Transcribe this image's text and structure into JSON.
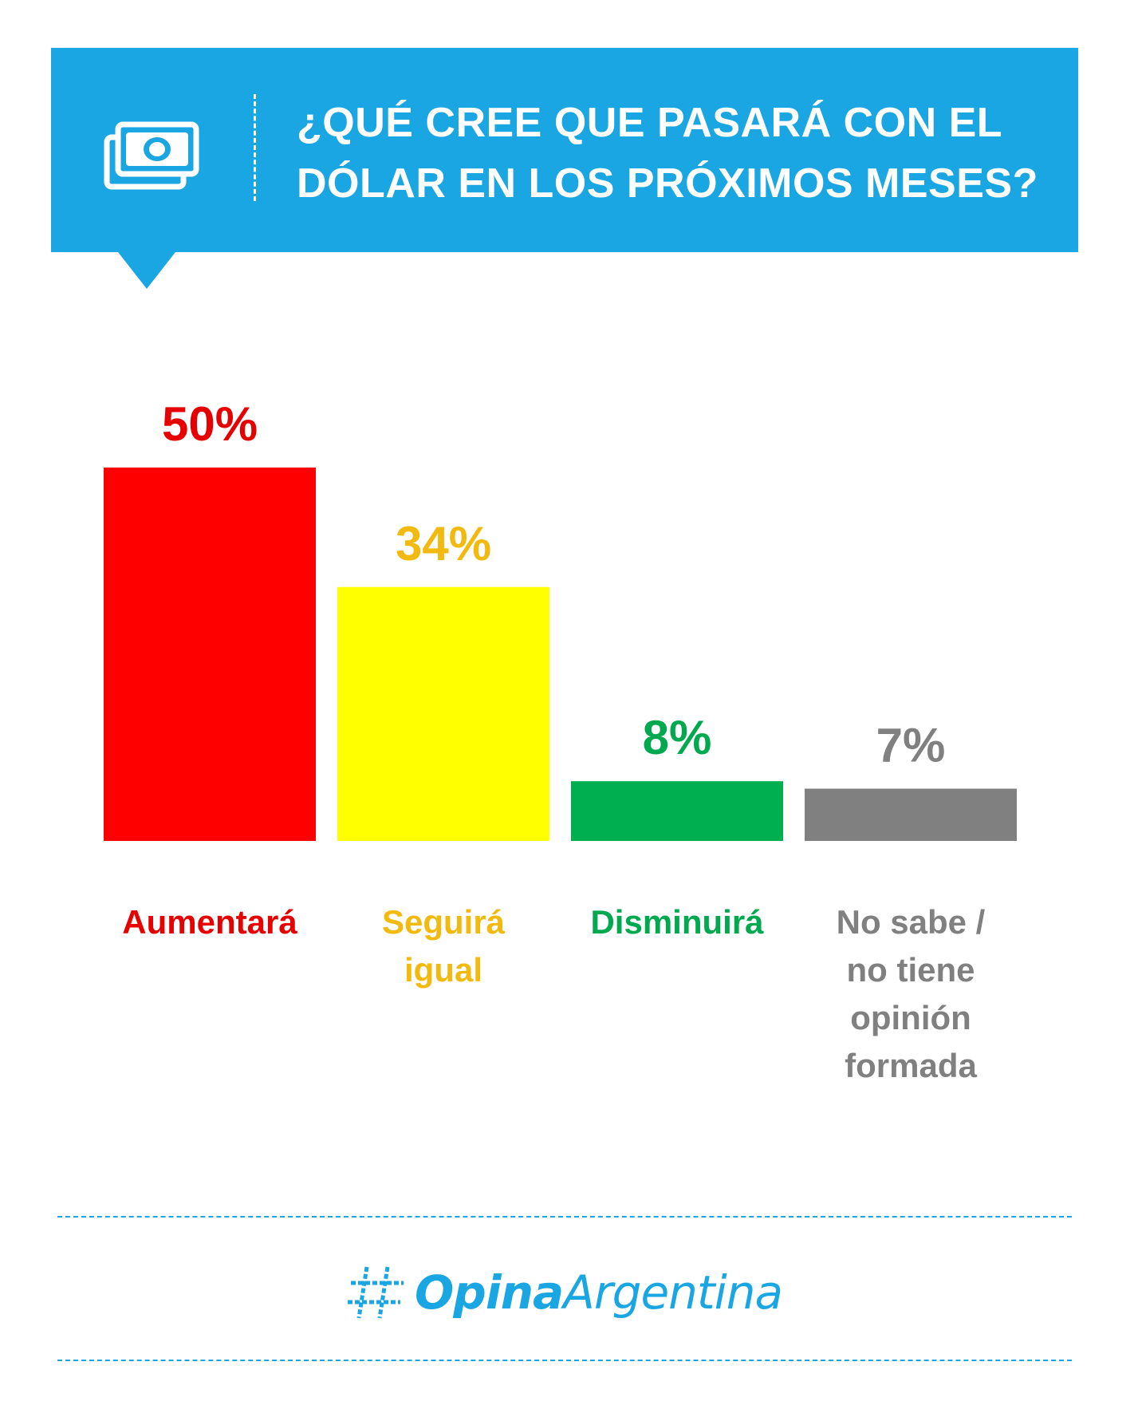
{
  "header": {
    "title_line1": "¿QUÉ CREE QUE PASARÁ CON EL",
    "title_line2": "DÓLAR EN LOS PRÓXIMOS MESES?",
    "icon": "money-icon",
    "color": "#1aa6e2"
  },
  "chart_data": {
    "type": "bar",
    "title": "¿QUÉ CREE QUE PASARÁ CON EL DÓLAR EN LOS PRÓXIMOS MESES?",
    "categories": [
      "Aumentará",
      "Seguirá igual",
      "Disminuirá",
      "No sabe / no tiene opinión formada"
    ],
    "category_lines": [
      [
        "Aumentará"
      ],
      [
        "Seguirá",
        "igual"
      ],
      [
        "Disminuirá"
      ],
      [
        "No sabe /",
        "no tiene",
        "opinión",
        "formada"
      ]
    ],
    "values": [
      50,
      34,
      8,
      7
    ],
    "value_labels": [
      "50%",
      "34%",
      "8%",
      "7%"
    ],
    "bar_colors": [
      "#ff0000",
      "#ffff00",
      "#00b050",
      "#808080"
    ],
    "label_colors": [
      "#e60000",
      "#f2b90f",
      "#00a84f",
      "#808080"
    ],
    "ylim": [
      0,
      50
    ],
    "grid": false,
    "legend": "none",
    "xlabel": "",
    "ylabel": ""
  },
  "footer": {
    "logo_bold": "Opina",
    "logo_light": "Argentina",
    "logo_icon": "hashtag-icon"
  }
}
